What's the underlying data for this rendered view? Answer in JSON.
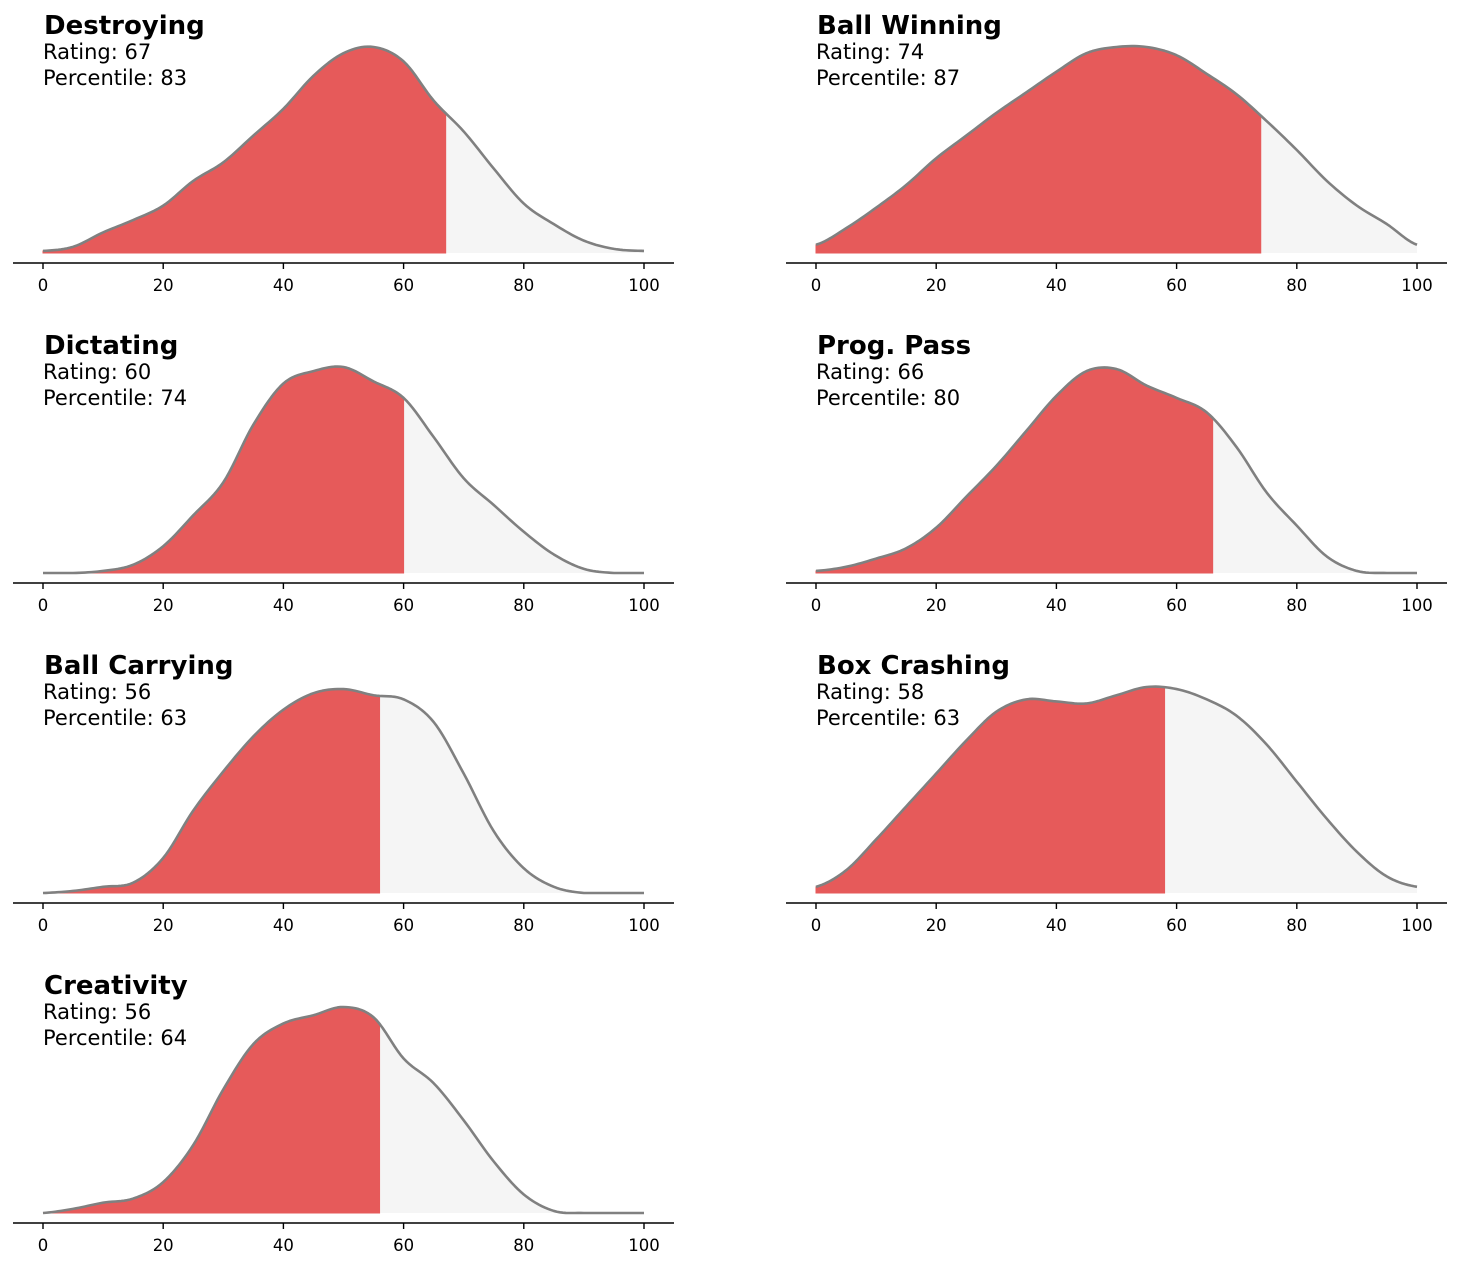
{
  "colors": {
    "highlight_fill": "#e65a5a",
    "remaining_fill": "#f5f5f5",
    "curve_stroke": "#808080",
    "axis": "#000000"
  },
  "chart_data": [
    {
      "type": "area",
      "title": "Destroying",
      "rating_label": "Rating: 67",
      "percentile_label": "Percentile: 83",
      "rating": 67,
      "percentile": 83,
      "xlim": [
        0,
        100
      ],
      "xticks": [
        "0",
        "20",
        "40",
        "60",
        "80",
        "100"
      ],
      "x": [
        0,
        5,
        10,
        15,
        20,
        25,
        30,
        35,
        40,
        45,
        50,
        55,
        60,
        65,
        70,
        75,
        80,
        85,
        90,
        95,
        100
      ],
      "density": [
        0.01,
        0.03,
        0.1,
        0.16,
        0.23,
        0.35,
        0.44,
        0.57,
        0.7,
        0.86,
        0.97,
        1.0,
        0.93,
        0.74,
        0.59,
        0.41,
        0.24,
        0.14,
        0.06,
        0.02,
        0.01
      ]
    },
    {
      "type": "area",
      "title": "Ball Winning",
      "rating_label": "Rating: 74",
      "percentile_label": "Percentile: 87",
      "rating": 74,
      "percentile": 87,
      "xlim": [
        0,
        100
      ],
      "xticks": [
        "0",
        "20",
        "40",
        "60",
        "80",
        "100"
      ],
      "x": [
        0,
        5,
        10,
        15,
        20,
        25,
        30,
        35,
        40,
        45,
        50,
        55,
        60,
        65,
        70,
        75,
        80,
        85,
        90,
        95,
        100
      ],
      "density": [
        0.04,
        0.12,
        0.22,
        0.33,
        0.46,
        0.57,
        0.68,
        0.78,
        0.88,
        0.97,
        1.0,
        1.0,
        0.96,
        0.87,
        0.77,
        0.64,
        0.5,
        0.35,
        0.23,
        0.14,
        0.04
      ]
    },
    {
      "type": "area",
      "title": "Dictating",
      "rating_label": "Rating: 60",
      "percentile_label": "Percentile: 74",
      "rating": 60,
      "percentile": 74,
      "xlim": [
        0,
        100
      ],
      "xticks": [
        "0",
        "20",
        "40",
        "60",
        "80",
        "100"
      ],
      "x": [
        0,
        5,
        10,
        15,
        20,
        25,
        30,
        35,
        40,
        45,
        50,
        55,
        60,
        65,
        70,
        75,
        80,
        85,
        90,
        95,
        100
      ],
      "density": [
        0.0,
        0.0,
        0.01,
        0.04,
        0.13,
        0.28,
        0.44,
        0.72,
        0.92,
        0.98,
        1.0,
        0.93,
        0.85,
        0.66,
        0.46,
        0.33,
        0.2,
        0.09,
        0.02,
        0.0,
        0.0
      ]
    },
    {
      "type": "area",
      "title": "Prog. Pass",
      "rating_label": "Rating: 66",
      "percentile_label": "Percentile: 80",
      "rating": 66,
      "percentile": 80,
      "xlim": [
        0,
        100
      ],
      "xticks": [
        "0",
        "20",
        "40",
        "60",
        "80",
        "100"
      ],
      "x": [
        0,
        5,
        10,
        15,
        20,
        25,
        30,
        35,
        40,
        45,
        50,
        55,
        60,
        65,
        70,
        75,
        80,
        85,
        90,
        95,
        100
      ],
      "density": [
        0.01,
        0.03,
        0.07,
        0.12,
        0.22,
        0.37,
        0.52,
        0.69,
        0.86,
        0.98,
        0.99,
        0.91,
        0.85,
        0.78,
        0.61,
        0.39,
        0.23,
        0.08,
        0.01,
        0.0,
        0.0
      ]
    },
    {
      "type": "area",
      "title": "Ball Carrying",
      "rating_label": "Rating: 56",
      "percentile_label": "Percentile: 63",
      "rating": 56,
      "percentile": 63,
      "xlim": [
        0,
        100
      ],
      "xticks": [
        "0",
        "20",
        "40",
        "60",
        "80",
        "100"
      ],
      "x": [
        0,
        5,
        10,
        15,
        20,
        25,
        30,
        35,
        40,
        45,
        50,
        55,
        60,
        65,
        70,
        75,
        80,
        85,
        90,
        95,
        100
      ],
      "density": [
        0.0,
        0.01,
        0.03,
        0.05,
        0.17,
        0.4,
        0.59,
        0.76,
        0.89,
        0.97,
        0.99,
        0.96,
        0.94,
        0.83,
        0.58,
        0.3,
        0.12,
        0.03,
        0.0,
        0.0,
        0.0
      ]
    },
    {
      "type": "area",
      "title": "Box Crashing",
      "rating_label": "Rating: 58",
      "percentile_label": "Percentile: 63",
      "rating": 58,
      "percentile": 63,
      "xlim": [
        0,
        100
      ],
      "xticks": [
        "0",
        "20",
        "40",
        "60",
        "80",
        "100"
      ],
      "x": [
        0,
        5,
        10,
        15,
        20,
        25,
        30,
        35,
        40,
        45,
        50,
        55,
        60,
        65,
        70,
        75,
        80,
        85,
        90,
        95,
        100
      ],
      "density": [
        0.03,
        0.11,
        0.26,
        0.42,
        0.58,
        0.74,
        0.88,
        0.94,
        0.93,
        0.92,
        0.96,
        1.0,
        0.99,
        0.94,
        0.86,
        0.72,
        0.54,
        0.36,
        0.2,
        0.08,
        0.03
      ]
    },
    {
      "type": "area",
      "title": "Creativity",
      "rating_label": "Rating: 56",
      "percentile_label": "Percentile: 64",
      "rating": 56,
      "percentile": 64,
      "xlim": [
        0,
        100
      ],
      "xticks": [
        "0",
        "20",
        "40",
        "60",
        "80",
        "100"
      ],
      "x": [
        0,
        5,
        10,
        15,
        20,
        25,
        30,
        35,
        40,
        45,
        50,
        55,
        60,
        65,
        70,
        75,
        80,
        85,
        90,
        95,
        100
      ],
      "density": [
        0.0,
        0.02,
        0.05,
        0.07,
        0.15,
        0.33,
        0.6,
        0.82,
        0.92,
        0.96,
        1.0,
        0.95,
        0.75,
        0.63,
        0.45,
        0.25,
        0.09,
        0.01,
        0.0,
        0.0,
        0.0
      ]
    }
  ]
}
